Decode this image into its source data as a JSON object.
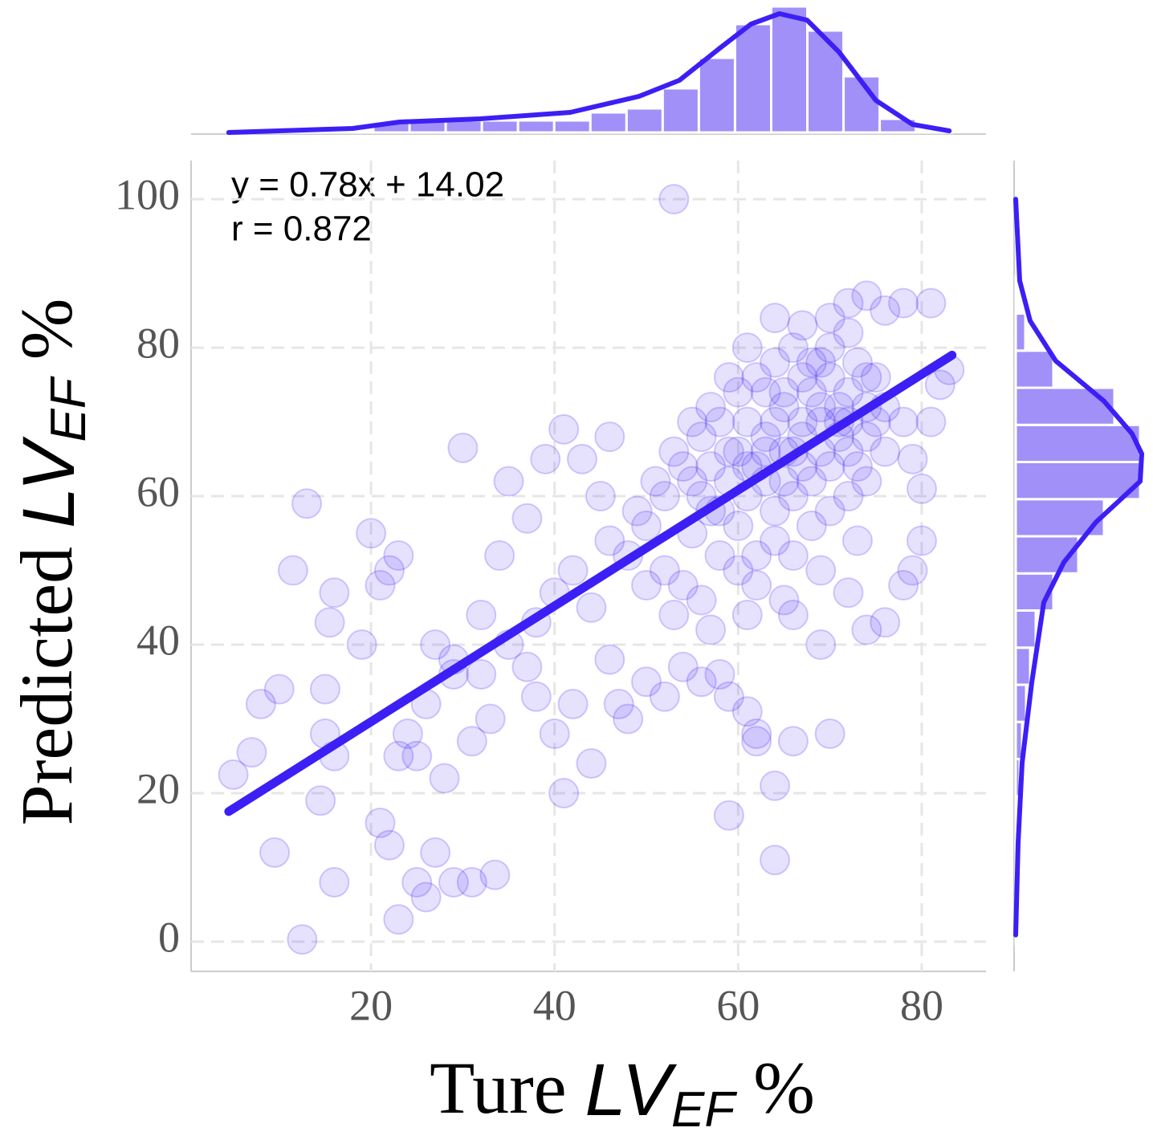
{
  "chart_data": [
    {
      "type": "scatter",
      "xlabel": {
        "text": "Ture",
        "var": "LV",
        "sub": "EF",
        "unit": "%"
      },
      "ylabel": {
        "text": "Predicted",
        "var": "LV",
        "sub": "EF",
        "unit": "%"
      },
      "annotations": [
        "y = 0.78x + 14.02",
        "r = 0.872"
      ],
      "xlim": [
        0.4,
        87.0
      ],
      "ylim": [
        -4,
        105.2
      ],
      "xticks": [
        20,
        40,
        60,
        80
      ],
      "yticks": [
        0,
        20,
        40,
        60,
        80,
        100
      ],
      "grid": true,
      "color": "#3c1ff5",
      "x": [
        53,
        12.5,
        23,
        13,
        11.5,
        5,
        7,
        10,
        8,
        9.5,
        16,
        14.5,
        16,
        15,
        15,
        15.5,
        16,
        19,
        20,
        21,
        22,
        23,
        23,
        21,
        22,
        25,
        26,
        27,
        29,
        31,
        33.5,
        30,
        27,
        29,
        32,
        34,
        35,
        37,
        39,
        41,
        43,
        45,
        46,
        38,
        40,
        42,
        44,
        41,
        37,
        33,
        31,
        28,
        25,
        24,
        26,
        29,
        32,
        35,
        38,
        40,
        42,
        44,
        46,
        47,
        48,
        50,
        52,
        54,
        56,
        58,
        59,
        61,
        62,
        64,
        66,
        70,
        62,
        64,
        59,
        66,
        69,
        72,
        74,
        76,
        78,
        79,
        80,
        80,
        79,
        81,
        82,
        83,
        81,
        78,
        76,
        74,
        72,
        70,
        67,
        64,
        55,
        56,
        57,
        58,
        59,
        60,
        61,
        62,
        63,
        64,
        65,
        66,
        67,
        68,
        69,
        70,
        71,
        72,
        73,
        74,
        75,
        60,
        62,
        64,
        66,
        68,
        70,
        72,
        74,
        58,
        60,
        62,
        64,
        66,
        68,
        70,
        72,
        56,
        54,
        52,
        50,
        52,
        54,
        56,
        58,
        60,
        62,
        64,
        66,
        68,
        70,
        72,
        74,
        76,
        78,
        76,
        74,
        72,
        57,
        59,
        61,
        63,
        65,
        67,
        69,
        71,
        73,
        75,
        55,
        53,
        51,
        49,
        48,
        46,
        50,
        53,
        57,
        61,
        65,
        69,
        73,
        63,
        61,
        59,
        57,
        55,
        65,
        67,
        69,
        71,
        63,
        61,
        65,
        67,
        69
      ],
      "values": [
        100,
        0.3,
        3,
        59,
        50,
        22.5,
        25.5,
        34,
        32,
        12,
        8,
        19,
        25,
        28,
        34,
        43,
        47,
        40,
        55,
        48,
        50,
        52,
        25,
        16,
        13,
        8,
        6,
        12,
        8,
        8,
        9,
        66.5,
        40,
        38,
        44,
        52,
        62,
        57,
        65,
        69,
        65,
        60,
        68,
        33,
        28,
        32,
        24,
        20,
        37,
        30,
        27,
        22,
        25,
        28,
        32,
        36,
        36,
        40,
        43,
        47,
        50,
        45,
        38,
        32,
        30,
        35,
        33,
        37,
        35,
        36,
        33,
        31,
        27,
        21,
        27,
        28,
        28,
        11,
        17,
        44,
        40,
        47,
        42,
        43,
        48,
        50,
        54,
        61,
        65,
        70,
        75,
        77,
        86,
        86,
        85,
        87,
        86,
        84,
        83,
        84,
        55,
        60,
        64,
        58,
        62,
        66,
        60,
        64,
        68,
        70,
        72,
        66,
        70,
        74,
        72,
        76,
        70,
        74,
        78,
        72,
        76,
        56,
        52,
        58,
        60,
        62,
        64,
        66,
        68,
        70,
        74,
        76,
        78,
        80,
        78,
        80,
        82,
        68,
        64,
        60,
        56,
        50,
        48,
        46,
        52,
        50,
        48,
        54,
        52,
        56,
        58,
        60,
        62,
        66,
        70,
        72,
        76,
        70,
        72,
        76,
        80,
        74,
        62,
        64,
        66,
        68,
        64,
        70,
        70,
        66,
        62,
        58,
        52,
        54,
        48,
        44,
        42,
        44,
        46,
        50,
        54,
        62,
        64,
        66,
        58,
        62,
        66,
        68,
        70,
        72,
        66,
        70,
        74,
        76,
        78
      ],
      "fit": {
        "x": [
          4.5,
          83.3
        ],
        "y": [
          17.53,
          78.99
        ]
      }
    },
    {
      "type": "histogram",
      "orientation": "vertical",
      "color": "#a090f8",
      "line_color": "#3c1ff5",
      "bins": [
        4.5,
        8.44,
        12.38,
        16.32,
        20.26,
        24.2,
        28.14,
        32.08,
        36.02,
        39.96,
        43.9,
        47.84,
        51.78,
        55.72,
        59.66,
        63.6,
        67.54,
        71.48,
        75.42,
        79.36,
        83.3
      ],
      "values": [
        1,
        1,
        2,
        3,
        13,
        15,
        15,
        15,
        15,
        15,
        25,
        30,
        55,
        93,
        135,
        157,
        127,
        70,
        17,
        1
      ],
      "ylim": [
        0,
        160
      ],
      "kde": {
        "x": [
          4.5,
          18,
          23.1,
          31.9,
          41.7,
          49.2,
          53.6,
          58,
          61.4,
          64.5,
          67.5,
          71,
          75,
          79,
          83
        ],
        "y": [
          0,
          5,
          13,
          17,
          25,
          45,
          65,
          105,
          135,
          148,
          140,
          100,
          40,
          10,
          2
        ]
      }
    },
    {
      "type": "histogram",
      "orientation": "horizontal",
      "color": "#a090f8",
      "line_color": "#3c1ff5",
      "bins": [
        -0.4,
        4.6,
        9.6,
        14.6,
        19.6,
        24.6,
        29.6,
        34.6,
        39.6,
        44.6,
        49.6,
        54.6,
        59.6,
        64.6,
        69.6,
        74.6,
        79.6,
        84.6,
        89.6,
        94.6,
        99.6
      ],
      "values": [
        1,
        1,
        2,
        3,
        5,
        8,
        13,
        18,
        25,
        47,
        78,
        110,
        155,
        155,
        123,
        47,
        12,
        1,
        0,
        1
      ],
      "xlim": [
        0,
        170
      ],
      "kde": {
        "x": [
          0.9,
          13.3,
          24.1,
          34.9,
          45.7,
          51.1,
          56.5,
          62,
          65.7,
          68.4,
          72.8,
          78.2,
          83.6,
          89,
          100
        ],
        "y": [
          0,
          3,
          8,
          20,
          35,
          60,
          100,
          155,
          157,
          145,
          110,
          50,
          18,
          5,
          0
        ]
      }
    }
  ]
}
